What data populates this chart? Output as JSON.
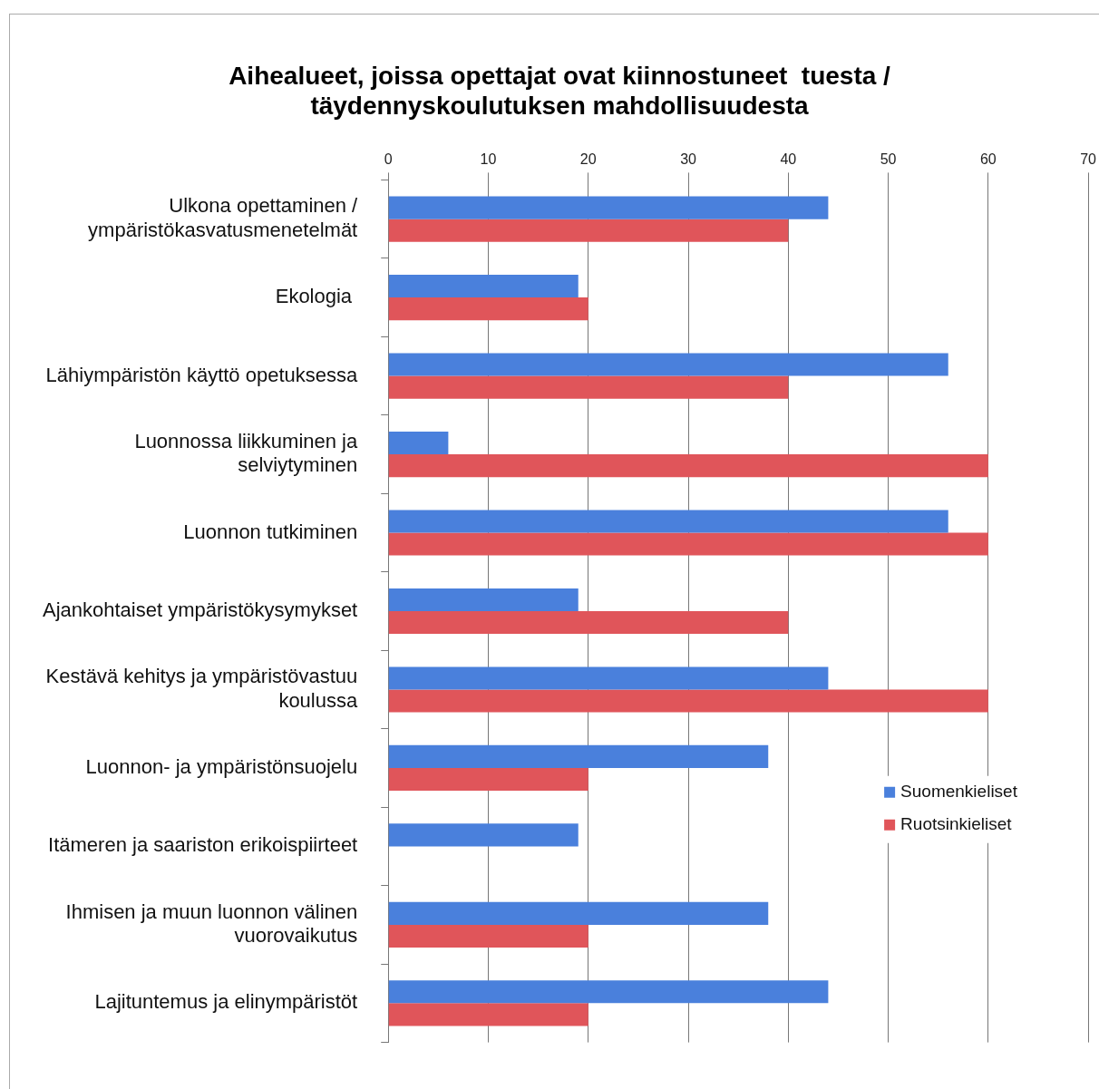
{
  "chart_data": {
    "type": "bar",
    "orientation": "horizontal",
    "title": "Aihealueet, joissa opettajat ovat kiinnostuneet  tuesta / täydennyskoulutuksen mahdollisuudesta",
    "categories": [
      "Ulkona opettaminen / ympäristökasvatusmenetelmät",
      "Ekologia ",
      "Lähiympäristön käyttö opetuksessa",
      "Luonnossa liikkuminen ja selviytyminen",
      "Luonnon tutkiminen",
      "Ajankohtaiset ympäristökysymykset",
      "Kestävä kehitys ja ympäristövastuu koulussa",
      "Luonnon- ja ympäristönsuojelu",
      "Itämeren ja saariston erikoispiirteet",
      "Ihmisen ja muun luonnon välinen vuorovaikutus",
      "Lajituntemus ja elinympäristöt"
    ],
    "series": [
      {
        "name": "Suomenkieliset",
        "color": "#4a80dc",
        "values": [
          44,
          19,
          56,
          6,
          56,
          19,
          44,
          38,
          19,
          38,
          44
        ]
      },
      {
        "name": "Ruotsinkieliset",
        "color": "#e0555a",
        "values": [
          40,
          20,
          40,
          60,
          60,
          40,
          60,
          20,
          null,
          20,
          20
        ]
      }
    ],
    "xlim": [
      0,
      70
    ],
    "xticks": [
      0,
      10,
      20,
      30,
      40,
      50,
      60,
      70
    ],
    "grid": "x",
    "legend": "right"
  }
}
